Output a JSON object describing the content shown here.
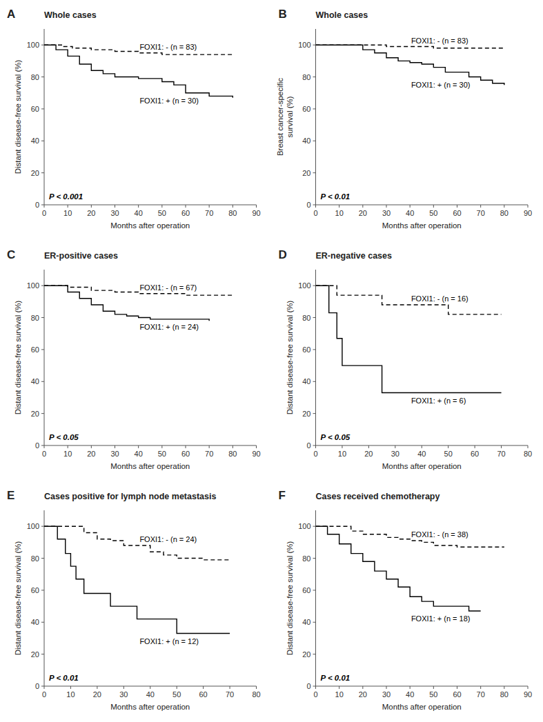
{
  "chart_data": [
    {
      "type": "step",
      "panel": "A",
      "title": "Whole cases",
      "xlabel": "Months after operation",
      "ylabel": "Distant disease-free survival (%)",
      "annotations": [
        "P < 0.001"
      ],
      "xlim": [
        0,
        90
      ],
      "ylim": [
        0,
        110
      ],
      "xticks": [
        0,
        10,
        20,
        30,
        40,
        50,
        60,
        70,
        80,
        90
      ],
      "yticks": [
        0,
        20,
        40,
        60,
        80,
        100
      ],
      "series": [
        {
          "name": "FOXI1: - (n = 83)",
          "color": "#000000",
          "line_style": "dashed",
          "x": [
            0,
            3,
            8,
            12,
            20,
            30,
            40,
            50,
            60,
            70,
            80
          ],
          "values": [
            100,
            100,
            99,
            98,
            97,
            96,
            95,
            94,
            94,
            94,
            93
          ]
        },
        {
          "name": "FOXI1: + (n = 30)",
          "color": "#000000",
          "line_style": "solid",
          "x": [
            0,
            5,
            10,
            15,
            20,
            25,
            30,
            40,
            50,
            55,
            60,
            70,
            80
          ],
          "values": [
            100,
            97,
            93,
            88,
            84,
            82,
            80,
            79,
            77,
            75,
            70,
            68,
            67
          ]
        }
      ]
    },
    {
      "type": "step",
      "panel": "B",
      "title": "Whole cases",
      "xlabel": "Months after operation",
      "ylabel": "Breast cancer-specific\nsurvival (%)",
      "annotations": [
        "P < 0.01"
      ],
      "xlim": [
        0,
        90
      ],
      "ylim": [
        0,
        110
      ],
      "xticks": [
        0,
        10,
        20,
        30,
        40,
        50,
        60,
        70,
        80,
        90
      ],
      "yticks": [
        0,
        20,
        40,
        60,
        80,
        100
      ],
      "series": [
        {
          "name": "FOXI1: - (n = 83)",
          "color": "#000000",
          "line_style": "dashed",
          "x": [
            0,
            20,
            30,
            40,
            50,
            60,
            70,
            80
          ],
          "values": [
            100,
            100,
            99,
            99,
            98,
            98,
            98,
            98
          ]
        },
        {
          "name": "FOXI1: + (n = 30)",
          "color": "#000000",
          "line_style": "solid",
          "x": [
            0,
            20,
            25,
            30,
            35,
            40,
            45,
            50,
            55,
            60,
            65,
            70,
            75,
            80
          ],
          "values": [
            100,
            97,
            95,
            92,
            90,
            89,
            88,
            86,
            83,
            83,
            80,
            78,
            76,
            75
          ]
        }
      ]
    },
    {
      "type": "step",
      "panel": "C",
      "title": "ER-positive cases",
      "xlabel": "Months after operation",
      "ylabel": "Distant disease-free survival (%)",
      "annotations": [
        "P < 0.05"
      ],
      "xlim": [
        0,
        90
      ],
      "ylim": [
        0,
        110
      ],
      "xticks": [
        0,
        10,
        20,
        30,
        40,
        50,
        60,
        70,
        80,
        90
      ],
      "yticks": [
        0,
        20,
        40,
        60,
        80,
        100
      ],
      "series": [
        {
          "name": "FOXI1: - (n = 67)",
          "color": "#000000",
          "line_style": "dashed",
          "x": [
            0,
            5,
            10,
            20,
            30,
            40,
            50,
            60,
            70,
            80
          ],
          "values": [
            100,
            100,
            99,
            97,
            96,
            95,
            95,
            94,
            94,
            94
          ]
        },
        {
          "name": "FOXI1: + (n = 24)",
          "color": "#000000",
          "line_style": "solid",
          "x": [
            0,
            10,
            15,
            20,
            25,
            30,
            35,
            40,
            45,
            50,
            55,
            60,
            70
          ],
          "values": [
            100,
            96,
            92,
            88,
            84,
            82,
            81,
            80,
            79,
            79,
            79,
            79,
            78
          ]
        }
      ]
    },
    {
      "type": "step",
      "panel": "D",
      "title": "ER-negative cases",
      "xlabel": "Months after operation",
      "ylabel": "Distant disease-free survival (%)",
      "annotations": [
        "P < 0.05"
      ],
      "xlim": [
        0,
        80
      ],
      "ylim": [
        0,
        110
      ],
      "xticks": [
        0,
        10,
        20,
        30,
        40,
        50,
        60,
        70,
        80
      ],
      "yticks": [
        0,
        20,
        40,
        60,
        80,
        100
      ],
      "series": [
        {
          "name": "FOXI1: - (n = 16)",
          "color": "#000000",
          "line_style": "dashed",
          "x": [
            0,
            3,
            8,
            15,
            20,
            25,
            30,
            40,
            50,
            60,
            70
          ],
          "values": [
            100,
            100,
            94,
            94,
            94,
            88,
            88,
            88,
            82,
            82,
            82
          ]
        },
        {
          "name": "FOXI1: + (n = 6)",
          "color": "#000000",
          "line_style": "solid",
          "x": [
            0,
            5,
            8,
            10,
            15,
            20,
            25,
            30,
            40,
            50,
            60,
            70
          ],
          "values": [
            100,
            83,
            67,
            50,
            50,
            50,
            33,
            33,
            33,
            33,
            33,
            33
          ]
        }
      ]
    },
    {
      "type": "step",
      "panel": "E",
      "title": "Cases positive for lymph node metastasis",
      "xlabel": "Months after operation",
      "ylabel": "Distant disease-free survival (%)",
      "annotations": [
        "P < 0.01"
      ],
      "xlim": [
        0,
        80
      ],
      "ylim": [
        0,
        110
      ],
      "xticks": [
        0,
        10,
        20,
        30,
        40,
        50,
        60,
        70,
        80
      ],
      "yticks": [
        0,
        20,
        40,
        60,
        80,
        100
      ],
      "series": [
        {
          "name": "FOXI1: - (n = 24)",
          "color": "#000000",
          "line_style": "dashed",
          "x": [
            0,
            5,
            10,
            15,
            20,
            25,
            30,
            35,
            40,
            45,
            50,
            60,
            70
          ],
          "values": [
            100,
            100,
            100,
            96,
            92,
            91,
            88,
            88,
            84,
            82,
            80,
            79,
            79
          ]
        },
        {
          "name": "FOXI1: + (n = 12)",
          "color": "#000000",
          "line_style": "solid",
          "x": [
            0,
            5,
            8,
            10,
            12,
            15,
            20,
            25,
            30,
            35,
            40,
            45,
            50,
            60,
            70
          ],
          "values": [
            100,
            92,
            83,
            75,
            67,
            58,
            58,
            50,
            50,
            42,
            42,
            42,
            33,
            33,
            33
          ]
        }
      ]
    },
    {
      "type": "step",
      "panel": "F",
      "title": "Cases received chemotherapy",
      "xlabel": "Months after operation",
      "ylabel": "Distant disease-free survival (%)",
      "annotations": [
        "P < 0.01"
      ],
      "xlim": [
        0,
        90
      ],
      "ylim": [
        0,
        110
      ],
      "xticks": [
        0,
        10,
        20,
        30,
        40,
        50,
        60,
        70,
        80,
        90
      ],
      "yticks": [
        0,
        20,
        40,
        60,
        80,
        100
      ],
      "series": [
        {
          "name": "FOXI1: - (n = 38)",
          "color": "#000000",
          "line_style": "dashed",
          "x": [
            0,
            5,
            10,
            15,
            20,
            25,
            30,
            35,
            40,
            45,
            50,
            60,
            70,
            80
          ],
          "values": [
            100,
            100,
            100,
            97,
            95,
            95,
            93,
            92,
            91,
            90,
            88,
            87,
            87,
            87
          ]
        },
        {
          "name": "FOXI1: + (n = 18)",
          "color": "#000000",
          "line_style": "solid",
          "x": [
            0,
            5,
            10,
            15,
            20,
            25,
            30,
            35,
            40,
            45,
            50,
            55,
            60,
            65,
            70
          ],
          "values": [
            100,
            95,
            89,
            83,
            78,
            72,
            67,
            62,
            56,
            53,
            50,
            50,
            50,
            47,
            47
          ]
        }
      ]
    }
  ]
}
